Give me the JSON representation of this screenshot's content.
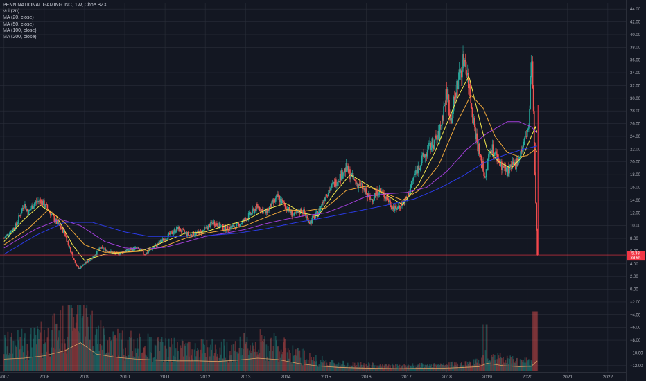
{
  "legend": {
    "title": "PENN NATIONAL GAMING INC, 1W, Cboe BZX",
    "vol": "Vol (20)",
    "ma20": "MA (20, close)",
    "ma50": "MA (50, close)",
    "ma100": "MA (100, close)",
    "ma200": "MA (200, close)"
  },
  "price_badge": {
    "price": "5.38",
    "countdown": "3d 6h",
    "color": "#f23645"
  },
  "colors": {
    "background": "#131722",
    "grid": "#2a2e39",
    "up": "#26a69a",
    "down": "#ef5350",
    "ma20": "#f5e94e",
    "ma50": "#f2a93b",
    "ma100": "#a23fd9",
    "ma200": "#2b3be8",
    "vol_ma": "#d9a066",
    "vline": "#f23645"
  },
  "chart_data": {
    "type": "candlestick",
    "title": "PENN NATIONAL GAMING INC, 1W, Cboe BZX",
    "x_ticks": [
      "2007",
      "2008",
      "2009",
      "2010",
      "2011",
      "2012",
      "2013",
      "2014",
      "2015",
      "2016",
      "2017",
      "2018",
      "2019",
      "2020",
      "2021",
      "2022"
    ],
    "y_ticks": [
      "44.00",
      "42.00",
      "40.00",
      "38.00",
      "36.00",
      "34.00",
      "32.00",
      "30.00",
      "28.00",
      "26.00",
      "24.00",
      "22.00",
      "20.00",
      "18.00",
      "16.00",
      "14.00",
      "12.00",
      "10.00",
      "8.00",
      "6.00",
      "4.00",
      "2.00",
      "0.00",
      "−2.00",
      "−4.00",
      "−6.00",
      "−8.00",
      "−10.00",
      "−12.00"
    ],
    "ylim": [
      -13,
      45
    ],
    "xlim": [
      2006.9,
      2022.45
    ],
    "price_keypoints": [
      [
        2007.0,
        8.0
      ],
      [
        2007.3,
        10.0
      ],
      [
        2007.5,
        13.5
      ],
      [
        2007.6,
        12.0
      ],
      [
        2007.75,
        13.5
      ],
      [
        2007.9,
        14.0
      ],
      [
        2008.1,
        12.5
      ],
      [
        2008.3,
        10.5
      ],
      [
        2008.5,
        9.0
      ],
      [
        2008.6,
        7.0
      ],
      [
        2008.75,
        4.5
      ],
      [
        2008.85,
        3.2
      ],
      [
        2009.0,
        4.0
      ],
      [
        2009.2,
        5.0
      ],
      [
        2009.4,
        6.5
      ],
      [
        2009.6,
        6.0
      ],
      [
        2009.8,
        5.5
      ],
      [
        2010.0,
        6.0
      ],
      [
        2010.3,
        6.5
      ],
      [
        2010.5,
        5.5
      ],
      [
        2010.8,
        7.0
      ],
      [
        2011.0,
        8.0
      ],
      [
        2011.3,
        9.5
      ],
      [
        2011.6,
        8.5
      ],
      [
        2011.9,
        9.0
      ],
      [
        2012.2,
        10.5
      ],
      [
        2012.5,
        9.5
      ],
      [
        2012.8,
        10.0
      ],
      [
        2013.0,
        11.0
      ],
      [
        2013.3,
        13.0
      ],
      [
        2013.5,
        12.0
      ],
      [
        2013.8,
        14.5
      ],
      [
        2014.0,
        13.0
      ],
      [
        2014.2,
        11.5
      ],
      [
        2014.4,
        12.5
      ],
      [
        2014.6,
        10.5
      ],
      [
        2014.8,
        12.0
      ],
      [
        2015.0,
        15.0
      ],
      [
        2015.2,
        16.5
      ],
      [
        2015.5,
        19.0
      ],
      [
        2015.7,
        17.0
      ],
      [
        2015.9,
        16.0
      ],
      [
        2016.1,
        14.0
      ],
      [
        2016.3,
        15.5
      ],
      [
        2016.5,
        14.5
      ],
      [
        2016.7,
        12.5
      ],
      [
        2016.9,
        13.5
      ],
      [
        2017.0,
        14.0
      ],
      [
        2017.2,
        18.0
      ],
      [
        2017.4,
        20.5
      ],
      [
        2017.6,
        22.5
      ],
      [
        2017.8,
        24.0
      ],
      [
        2018.0,
        31.0
      ],
      [
        2018.1,
        26.5
      ],
      [
        2018.3,
        33.5
      ],
      [
        2018.45,
        36.5
      ],
      [
        2018.55,
        32.0
      ],
      [
        2018.7,
        25.0
      ],
      [
        2018.85,
        20.0
      ],
      [
        2018.95,
        18.0
      ],
      [
        2019.1,
        22.5
      ],
      [
        2019.3,
        20.0
      ],
      [
        2019.5,
        18.5
      ],
      [
        2019.7,
        19.5
      ],
      [
        2019.9,
        22.5
      ],
      [
        2020.05,
        26.0
      ],
      [
        2020.1,
        37.5
      ],
      [
        2020.15,
        29.0
      ],
      [
        2020.2,
        16.0
      ],
      [
        2020.25,
        5.38
      ]
    ],
    "series": [
      {
        "name": "MA (20, close)",
        "color": "#f5e94e",
        "points": [
          [
            2007.0,
            7.5
          ],
          [
            2007.5,
            11.0
          ],
          [
            2007.9,
            13.2
          ],
          [
            2008.3,
            11.5
          ],
          [
            2008.7,
            7.0
          ],
          [
            2009.0,
            4.5
          ],
          [
            2009.5,
            5.5
          ],
          [
            2010.0,
            5.8
          ],
          [
            2010.5,
            6.2
          ],
          [
            2011.0,
            7.5
          ],
          [
            2011.5,
            8.8
          ],
          [
            2012.0,
            9.0
          ],
          [
            2012.5,
            10.0
          ],
          [
            2013.0,
            10.8
          ],
          [
            2013.5,
            12.5
          ],
          [
            2014.0,
            13.5
          ],
          [
            2014.4,
            12.0
          ],
          [
            2014.8,
            11.5
          ],
          [
            2015.2,
            15.0
          ],
          [
            2015.6,
            18.0
          ],
          [
            2016.0,
            16.5
          ],
          [
            2016.5,
            14.8
          ],
          [
            2016.9,
            13.3
          ],
          [
            2017.3,
            16.5
          ],
          [
            2017.7,
            21.5
          ],
          [
            2018.0,
            26.0
          ],
          [
            2018.3,
            30.5
          ],
          [
            2018.55,
            33.5
          ],
          [
            2018.8,
            27.0
          ],
          [
            2019.0,
            22.0
          ],
          [
            2019.3,
            20.0
          ],
          [
            2019.6,
            19.0
          ],
          [
            2019.9,
            21.0
          ],
          [
            2020.1,
            24.0
          ],
          [
            2020.2,
            25.5
          ],
          [
            2020.25,
            24.5
          ]
        ]
      },
      {
        "name": "MA (50, close)",
        "color": "#f2a93b",
        "points": [
          [
            2007.0,
            7.0
          ],
          [
            2007.6,
            9.5
          ],
          [
            2008.1,
            12.5
          ],
          [
            2008.5,
            10.5
          ],
          [
            2009.0,
            7.0
          ],
          [
            2009.5,
            5.8
          ],
          [
            2010.0,
            5.8
          ],
          [
            2010.5,
            6.0
          ],
          [
            2011.0,
            6.8
          ],
          [
            2011.5,
            8.0
          ],
          [
            2012.0,
            8.8
          ],
          [
            2012.5,
            9.3
          ],
          [
            2013.0,
            10.0
          ],
          [
            2013.5,
            11.3
          ],
          [
            2014.0,
            12.5
          ],
          [
            2014.5,
            12.3
          ],
          [
            2015.0,
            12.8
          ],
          [
            2015.5,
            15.5
          ],
          [
            2016.0,
            16.2
          ],
          [
            2016.5,
            15.0
          ],
          [
            2016.9,
            14.0
          ],
          [
            2017.3,
            15.5
          ],
          [
            2017.8,
            19.5
          ],
          [
            2018.2,
            25.5
          ],
          [
            2018.6,
            30.5
          ],
          [
            2018.9,
            28.5
          ],
          [
            2019.2,
            24.0
          ],
          [
            2019.5,
            21.5
          ],
          [
            2019.8,
            20.8
          ],
          [
            2020.0,
            21.0
          ],
          [
            2020.2,
            22.0
          ],
          [
            2020.25,
            21.5
          ]
        ]
      },
      {
        "name": "MA (100, close)",
        "color": "#a23fd9",
        "points": [
          [
            2007.0,
            6.5
          ],
          [
            2007.8,
            9.5
          ],
          [
            2008.4,
            11.0
          ],
          [
            2008.9,
            10.0
          ],
          [
            2009.5,
            7.5
          ],
          [
            2010.0,
            6.5
          ],
          [
            2010.5,
            6.3
          ],
          [
            2011.0,
            6.6
          ],
          [
            2011.5,
            7.4
          ],
          [
            2012.0,
            8.3
          ],
          [
            2012.5,
            8.8
          ],
          [
            2013.0,
            9.4
          ],
          [
            2013.5,
            10.3
          ],
          [
            2014.0,
            11.0
          ],
          [
            2014.5,
            11.6
          ],
          [
            2015.0,
            12.0
          ],
          [
            2015.5,
            13.2
          ],
          [
            2016.0,
            14.6
          ],
          [
            2016.5,
            15.0
          ],
          [
            2017.0,
            15.2
          ],
          [
            2017.5,
            16.0
          ],
          [
            2018.0,
            18.5
          ],
          [
            2018.5,
            22.0
          ],
          [
            2019.0,
            24.5
          ],
          [
            2019.5,
            26.3
          ],
          [
            2019.8,
            26.3
          ],
          [
            2020.1,
            25.5
          ],
          [
            2020.25,
            24.5
          ]
        ]
      },
      {
        "name": "MA (200, close)",
        "color": "#2b3be8",
        "points": [
          [
            2007.0,
            5.5
          ],
          [
            2007.8,
            8.5
          ],
          [
            2008.5,
            10.5
          ],
          [
            2009.2,
            10.5
          ],
          [
            2010.0,
            9.0
          ],
          [
            2010.6,
            8.3
          ],
          [
            2011.2,
            8.3
          ],
          [
            2012.0,
            8.4
          ],
          [
            2012.8,
            8.8
          ],
          [
            2013.5,
            9.5
          ],
          [
            2014.2,
            10.4
          ],
          [
            2015.0,
            11.3
          ],
          [
            2015.8,
            12.3
          ],
          [
            2016.5,
            13.2
          ],
          [
            2017.2,
            14.2
          ],
          [
            2017.8,
            15.8
          ],
          [
            2018.4,
            17.8
          ],
          [
            2018.9,
            19.8
          ],
          [
            2019.4,
            21.0
          ],
          [
            2019.9,
            22.0
          ],
          [
            2020.25,
            22.5
          ]
        ]
      }
    ],
    "volume": {
      "ylim": [
        0,
        1
      ],
      "vol_ma": [
        [
          2007.0,
          0.35
        ],
        [
          2007.5,
          0.38
        ],
        [
          2008.0,
          0.45
        ],
        [
          2008.5,
          0.6
        ],
        [
          2008.9,
          0.85
        ],
        [
          2009.3,
          0.5
        ],
        [
          2009.8,
          0.4
        ],
        [
          2010.3,
          0.35
        ],
        [
          2010.8,
          0.32
        ],
        [
          2011.3,
          0.3
        ],
        [
          2011.8,
          0.3
        ],
        [
          2012.3,
          0.28
        ],
        [
          2012.8,
          0.32
        ],
        [
          2013.3,
          0.38
        ],
        [
          2013.8,
          0.34
        ],
        [
          2014.3,
          0.22
        ],
        [
          2014.8,
          0.14
        ],
        [
          2015.3,
          0.1
        ],
        [
          2015.8,
          0.08
        ],
        [
          2016.3,
          0.07
        ],
        [
          2016.8,
          0.06
        ],
        [
          2017.3,
          0.07
        ],
        [
          2017.8,
          0.07
        ],
        [
          2018.3,
          0.09
        ],
        [
          2018.8,
          0.12
        ],
        [
          2019.0,
          0.22
        ],
        [
          2019.4,
          0.15
        ],
        [
          2019.8,
          0.12
        ],
        [
          2020.1,
          0.13
        ],
        [
          2020.25,
          0.3
        ]
      ]
    }
  }
}
